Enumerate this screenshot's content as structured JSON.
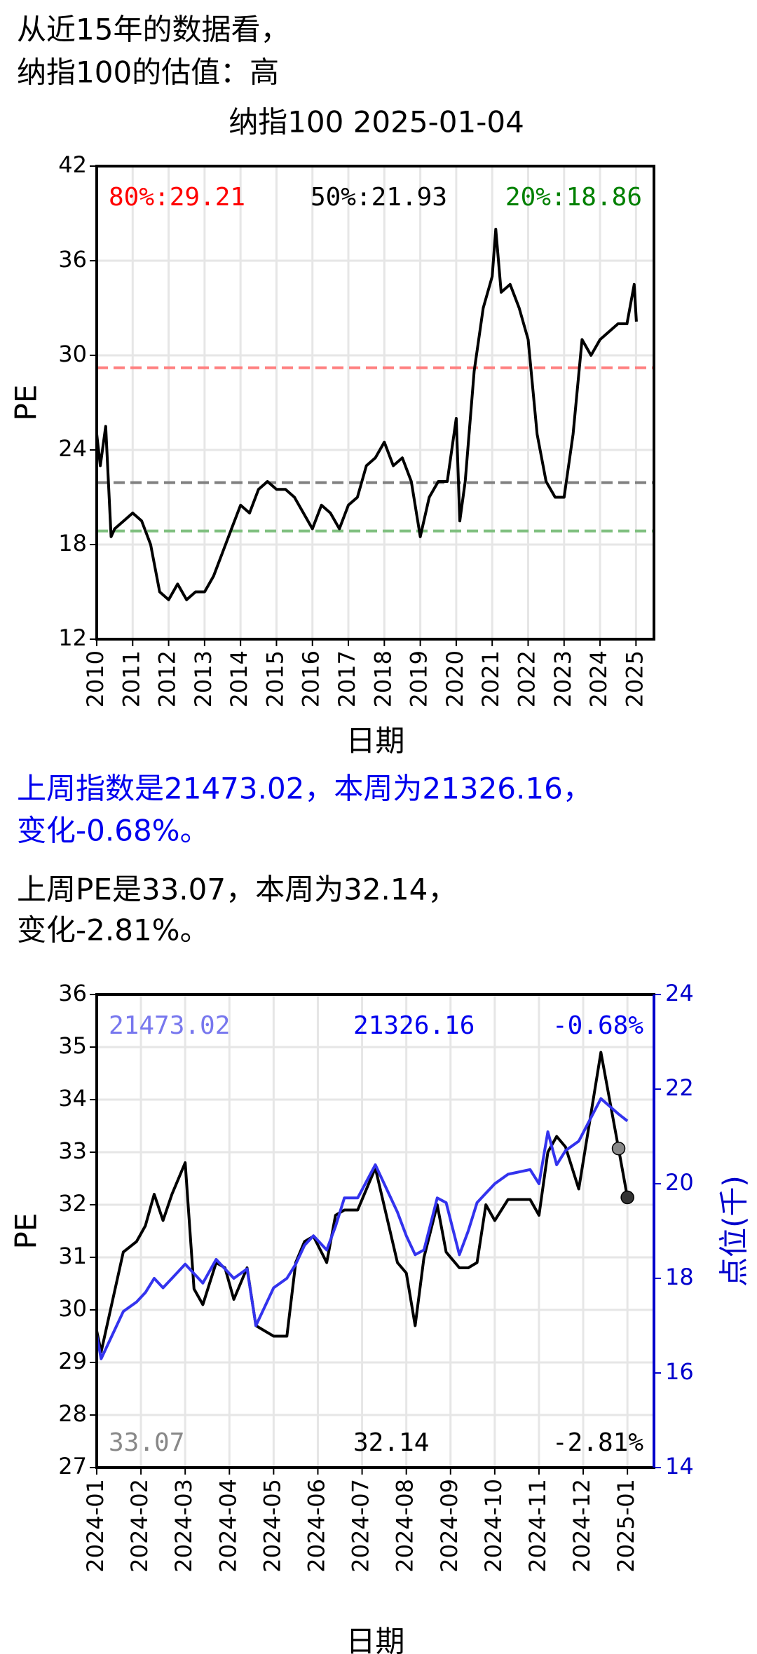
{
  "intro": [
    "从近15年的数据看，",
    "纳指100的估值：高"
  ],
  "index_text": [
    "上周指数是21473.02，本周为21326.16，",
    "变化-0.68%。"
  ],
  "pe_text": [
    "上周PE是33.07，本周为32.14，",
    "变化-2.81%。"
  ],
  "chart_data": [
    {
      "type": "line",
      "title": "纳指100 2025-01-04",
      "xlabel": "日期",
      "ylabel": "PE",
      "xlim": [
        2010,
        2025.5
      ],
      "xticks": [
        2010,
        2011,
        2012,
        2013,
        2014,
        2015,
        2016,
        2017,
        2018,
        2019,
        2020,
        2021,
        2022,
        2023,
        2024,
        2025
      ],
      "ylim": [
        12,
        42
      ],
      "yticks": [
        12,
        18,
        24,
        30,
        36,
        42
      ],
      "grid": true,
      "reference_lines": [
        {
          "label": "80%:29.21",
          "value": 29.21,
          "color": "#ff0000",
          "line_color": "#ff8080"
        },
        {
          "label": "50%:21.93",
          "value": 21.93,
          "color": "#000000",
          "line_color": "#808080"
        },
        {
          "label": "20%:18.86",
          "value": 18.86,
          "color": "#008000",
          "line_color": "#80c080"
        }
      ],
      "x": [
        2010,
        2010.1,
        2010.25,
        2010.4,
        2010.5,
        2010.75,
        2011,
        2011.25,
        2011.5,
        2011.75,
        2012,
        2012.25,
        2012.5,
        2012.75,
        2013,
        2013.25,
        2013.5,
        2013.75,
        2014,
        2014.25,
        2014.5,
        2014.75,
        2015,
        2015.25,
        2015.5,
        2015.75,
        2016,
        2016.25,
        2016.5,
        2016.75,
        2017,
        2017.25,
        2017.5,
        2017.75,
        2018,
        2018.25,
        2018.5,
        2018.75,
        2019,
        2019.25,
        2019.5,
        2019.75,
        2020,
        2020.1,
        2020.25,
        2020.5,
        2020.75,
        2021,
        2021.1,
        2021.25,
        2021.5,
        2021.75,
        2022,
        2022.25,
        2022.5,
        2022.75,
        2023,
        2023.25,
        2023.5,
        2023.75,
        2024,
        2024.25,
        2024.5,
        2024.75,
        2024.95,
        2025.01
      ],
      "series": [
        {
          "color": "#000000",
          "values": [
            25,
            23,
            25.5,
            18.5,
            19,
            19.5,
            20,
            19.5,
            18,
            15,
            14.5,
            15.5,
            14.5,
            15,
            15,
            16,
            17.5,
            19,
            20.5,
            20,
            21.5,
            22,
            21.5,
            21.5,
            21,
            20,
            19,
            20.5,
            20,
            19,
            20.5,
            21,
            23,
            23.5,
            24.5,
            23,
            23.5,
            22,
            18.5,
            21,
            22,
            22,
            26,
            19.5,
            22,
            29,
            33,
            35,
            38,
            34,
            34.5,
            33,
            31,
            25,
            22,
            21,
            21,
            25,
            31,
            30,
            31,
            31.5,
            32,
            32,
            34.5,
            32.14
          ]
        }
      ]
    },
    {
      "type": "line",
      "xlabel": "日期",
      "ylabel": "PE",
      "y2label": "点位(千)",
      "xlim": [
        0,
        12.6
      ],
      "xticks": [
        {
          "value": 0,
          "label": "2024-01"
        },
        {
          "value": 1,
          "label": "2024-02"
        },
        {
          "value": 2,
          "label": "2024-03"
        },
        {
          "value": 3,
          "label": "2024-04"
        },
        {
          "value": 4,
          "label": "2024-05"
        },
        {
          "value": 5,
          "label": "2024-06"
        },
        {
          "value": 6,
          "label": "2024-07"
        },
        {
          "value": 7,
          "label": "2024-08"
        },
        {
          "value": 8,
          "label": "2024-09"
        },
        {
          "value": 9,
          "label": "2024-10"
        },
        {
          "value": 10,
          "label": "2024-11"
        },
        {
          "value": 11,
          "label": "2024-12"
        },
        {
          "value": 12,
          "label": "2025-01"
        }
      ],
      "ylim": [
        27,
        36
      ],
      "yticks": [
        27,
        28,
        29,
        30,
        31,
        32,
        33,
        34,
        35,
        36
      ],
      "y2lim": [
        14,
        24
      ],
      "y2ticks": [
        14,
        16,
        18,
        20,
        22,
        24
      ],
      "y2color": "#0000cc",
      "grid": true,
      "x": [
        0,
        0.1,
        0.6,
        0.9,
        1.1,
        1.3,
        1.5,
        1.7,
        2,
        2.2,
        2.4,
        2.7,
        2.9,
        3.1,
        3.4,
        3.6,
        4,
        4.3,
        4.5,
        4.7,
        4.9,
        5.2,
        5.4,
        5.6,
        5.9,
        6.3,
        6.8,
        7,
        7.2,
        7.4,
        7.7,
        7.9,
        8.2,
        8.4,
        8.6,
        8.8,
        9,
        9.3,
        9.8,
        10,
        10.2,
        10.4,
        10.6,
        10.9,
        11.4,
        11.8,
        12
      ],
      "series": [
        {
          "color": "#000000",
          "values": [
            29.6,
            29.2,
            31.1,
            31.3,
            31.6,
            32.2,
            31.7,
            32.2,
            32.8,
            30.4,
            30.1,
            30.9,
            30.8,
            30.2,
            30.8,
            29.7,
            29.5,
            29.5,
            30.9,
            31.3,
            31.4,
            30.9,
            31.8,
            31.9,
            31.9,
            32.7,
            30.9,
            30.7,
            29.7,
            31,
            32,
            31.1,
            30.8,
            30.8,
            30.9,
            32,
            31.7,
            32.1,
            32.1,
            31.8,
            33,
            33.3,
            33.1,
            32.3,
            34.9,
            33.07,
            32.14
          ]
        },
        {
          "color": "#3333ee",
          "axis": "y2",
          "values": [
            16.8,
            16.3,
            17.3,
            17.5,
            17.7,
            18,
            17.8,
            18,
            18.3,
            18.1,
            17.9,
            18.4,
            18.2,
            18,
            18.2,
            17,
            17.8,
            18,
            18.3,
            18.7,
            18.9,
            18.6,
            19.1,
            19.7,
            19.7,
            20.4,
            19.4,
            18.9,
            18.5,
            18.6,
            19.7,
            19.6,
            18.5,
            19,
            19.6,
            19.8,
            20,
            20.2,
            20.3,
            20,
            21.1,
            20.4,
            20.7,
            20.9,
            21.8,
            21.47302,
            21.32616
          ]
        }
      ],
      "annotations": [
        {
          "text": "21473.02",
          "color": "#7777ee",
          "corner": "top-left"
        },
        {
          "text": "21326.16",
          "color": "#0000ee",
          "corner": "top-center"
        },
        {
          "text": "-0.68%",
          "color": "#0000ee",
          "corner": "top-right"
        },
        {
          "text": "33.07",
          "color": "#888888",
          "corner": "bottom-left"
        },
        {
          "text": "32.14",
          "color": "#000000",
          "corner": "bottom-center"
        },
        {
          "text": "-2.81%",
          "color": "#000000",
          "corner": "bottom-right"
        }
      ]
    }
  ]
}
